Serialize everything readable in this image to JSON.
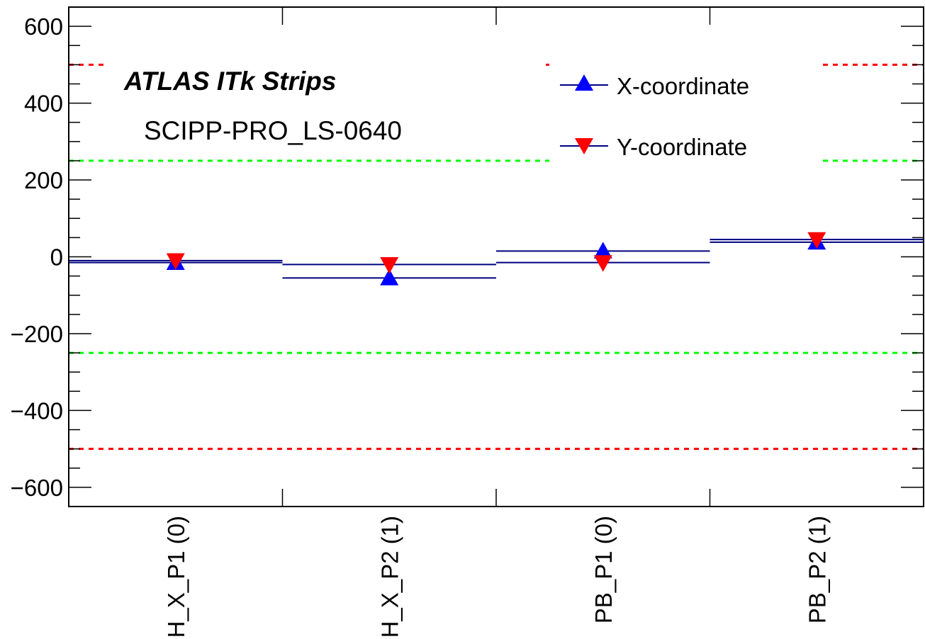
{
  "chart_data": {
    "type": "scatter",
    "title": "",
    "xlabel": "",
    "ylabel": "",
    "categories": [
      "H_X_P1 (0)",
      "H_X_P2 (1)",
      "PB_P1 (0)",
      "PB_P2 (1)"
    ],
    "ylim": [
      -650,
      650
    ],
    "y_ticks": [
      -600,
      -400,
      -200,
      0,
      200,
      400,
      600
    ],
    "y_tick_labels": [
      "−600",
      "−400",
      "−200",
      "0",
      "200",
      "400",
      "600"
    ],
    "series": [
      {
        "name": "X-coordinate",
        "marker": "triangle-up",
        "color": "#0000ff",
        "values": [
          -15,
          -55,
          15,
          38
        ]
      },
      {
        "name": "Y-coordinate",
        "marker": "triangle-down",
        "color": "#ff0000",
        "values": [
          -10,
          -20,
          -15,
          45
        ]
      }
    ],
    "reference_lines": [
      {
        "value": 500,
        "color": "#ff0000",
        "style": "dashed"
      },
      {
        "value": 250,
        "color": "#00ff00",
        "style": "dashed"
      },
      {
        "value": -250,
        "color": "#00ff00",
        "style": "dashed"
      },
      {
        "value": -500,
        "color": "#ff0000",
        "style": "dashed"
      }
    ],
    "legend_position": "top-right",
    "grid": false,
    "annotations": {
      "experiment": "ATLAS ITk Strips",
      "module": "SCIPP-PRO_LS-0640"
    },
    "line_color": "#000080"
  }
}
